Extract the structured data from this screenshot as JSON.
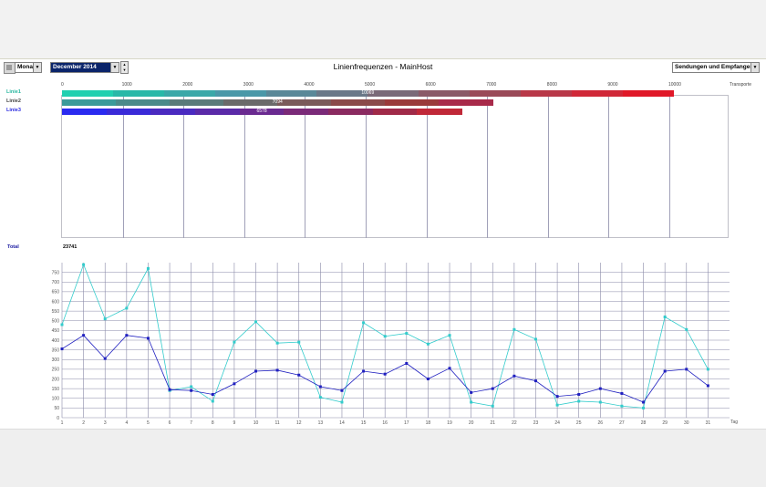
{
  "toolbar": {
    "period_select": "Monat",
    "month_select": "December 2014",
    "title": "Linienfrequenzen - MainHost",
    "mode_select": "Sendungen und Empfangene"
  },
  "bar_section": {
    "axis_ticks": [
      "0",
      "1000",
      "2000",
      "3000",
      "4000",
      "5000",
      "6000",
      "7000",
      "8000",
      "9000",
      "10000"
    ],
    "axis_unit": "Transporte",
    "lines": [
      {
        "label": "Linie1",
        "color": "#2ab7a0",
        "total": 10069,
        "value_label": "10069"
      },
      {
        "label": "Linie2",
        "color": "#555555",
        "total": 7094,
        "value_label": "7094"
      },
      {
        "label": "Linie3",
        "color": "#2a2ae0",
        "total": 6578,
        "value_label": "6578"
      }
    ],
    "total_label": "Total",
    "total_value": "23741"
  },
  "chart_data": {
    "type": "line",
    "x": [
      "1",
      "2",
      "3",
      "4",
      "5",
      "6",
      "7",
      "8",
      "9",
      "10",
      "11",
      "12",
      "13",
      "14",
      "15",
      "16",
      "17",
      "18",
      "19",
      "20",
      "21",
      "22",
      "23",
      "24",
      "25",
      "26",
      "27",
      "28",
      "29",
      "30",
      "31"
    ],
    "xlabel": "Tag",
    "ylim": [
      0,
      800
    ],
    "yticks": [
      0,
      50,
      100,
      150,
      200,
      250,
      300,
      350,
      400,
      450,
      500,
      550,
      600,
      650,
      700,
      750
    ],
    "series": [
      {
        "color": "#33cccc",
        "values": [
          480,
          790,
          510,
          565,
          770,
          140,
          160,
          85,
          390,
          495,
          385,
          390,
          105,
          80,
          490,
          420,
          435,
          380,
          425,
          80,
          60,
          455,
          405,
          65,
          85,
          80,
          60,
          50,
          520,
          455,
          250
        ]
      },
      {
        "color": "#2020c0",
        "values": [
          355,
          425,
          305,
          425,
          410,
          145,
          140,
          120,
          175,
          240,
          245,
          220,
          160,
          140,
          240,
          225,
          280,
          200,
          255,
          130,
          150,
          215,
          190,
          110,
          120,
          150,
          125,
          80,
          240,
          250,
          165
        ]
      }
    ]
  }
}
